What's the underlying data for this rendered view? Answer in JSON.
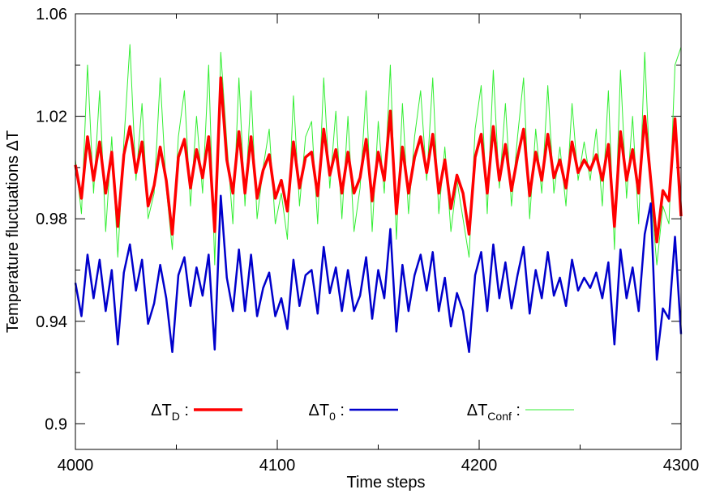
{
  "chart_data": {
    "type": "line",
    "xlabel": "Time steps",
    "ylabel": "Temperature  fluctuations ΔT",
    "legend_separator": " :",
    "xlim": [
      4000,
      4300
    ],
    "xticks": [
      4000,
      4100,
      4200,
      4300
    ],
    "xminorticks": [
      4050,
      4150,
      4250
    ],
    "ylim": [
      0.89,
      1.06
    ],
    "yticks": [
      0.9,
      0.94,
      0.98,
      1.02,
      1.06
    ],
    "yminorticks": [
      0.92,
      0.96,
      1.0,
      1.04
    ],
    "legend_position": "bottom",
    "x": [
      4000,
      4003,
      4006,
      4009,
      4012,
      4015,
      4018,
      4021,
      4024,
      4027,
      4030,
      4033,
      4036,
      4039,
      4042,
      4045,
      4048,
      4051,
      4054,
      4057,
      4060,
      4063,
      4066,
      4069,
      4072,
      4075,
      4078,
      4081,
      4084,
      4087,
      4090,
      4093,
      4096,
      4099,
      4102,
      4105,
      4108,
      4111,
      4114,
      4117,
      4120,
      4123,
      4126,
      4129,
      4132,
      4135,
      4138,
      4141,
      4144,
      4147,
      4150,
      4153,
      4156,
      4159,
      4162,
      4165,
      4168,
      4171,
      4174,
      4177,
      4180,
      4183,
      4186,
      4189,
      4192,
      4195,
      4198,
      4201,
      4204,
      4207,
      4210,
      4213,
      4216,
      4219,
      4222,
      4225,
      4228,
      4231,
      4234,
      4237,
      4240,
      4243,
      4246,
      4249,
      4252,
      4255,
      4258,
      4261,
      4264,
      4267,
      4270,
      4273,
      4276,
      4279,
      4282,
      4285,
      4288,
      4291,
      4294,
      4297,
      4300
    ],
    "series": [
      {
        "name": "ΔT",
        "name_subscript": "Conf",
        "color": "#33ee33",
        "width": 1,
        "values": [
          1.003,
          0.982,
          1.04,
          0.99,
          1.03,
          0.975,
          1.012,
          0.965,
          1.01,
          1.048,
          0.995,
          1.025,
          0.98,
          0.99,
          1.035,
          0.992,
          0.968,
          1.012,
          1.03,
          0.985,
          1.02,
          0.99,
          1.04,
          0.962,
          1.045,
          1.01,
          0.978,
          1.035,
          0.985,
          1.03,
          0.98,
          1.0,
          1.015,
          0.978,
          0.99,
          0.972,
          1.028,
          0.985,
          1.012,
          1.018,
          0.978,
          1.035,
          0.992,
          1.022,
          0.98,
          1.02,
          0.975,
          0.992,
          1.03,
          0.975,
          1.018,
          0.99,
          1.04,
          0.972,
          1.025,
          0.982,
          1.012,
          1.03,
          0.995,
          1.035,
          0.982,
          1.008,
          0.975,
          0.995,
          0.98,
          0.965,
          1.015,
          1.032,
          0.982,
          1.038,
          0.992,
          1.025,
          0.985,
          1.012,
          1.035,
          0.98,
          1.015,
          0.99,
          1.032,
          0.99,
          1.008,
          0.985,
          1.025,
          0.995,
          1.01,
          0.995,
          1.015,
          0.985,
          1.03,
          0.968,
          1.038,
          0.988,
          1.02,
          0.978,
          1.045,
          0.99,
          0.962,
          0.985,
          0.978,
          1.04,
          1.047
        ]
      },
      {
        "name": "ΔT",
        "name_subscript": "D",
        "color": "#ff0000",
        "width": 3.5,
        "values": [
          1.001,
          0.988,
          1.012,
          0.995,
          1.01,
          0.99,
          1.006,
          0.977,
          1.005,
          1.016,
          0.998,
          1.01,
          0.985,
          0.993,
          1.008,
          0.995,
          0.974,
          1.004,
          1.011,
          0.992,
          1.007,
          0.996,
          1.012,
          0.975,
          1.035,
          1.003,
          0.99,
          1.014,
          0.99,
          1.012,
          0.988,
          0.999,
          1.005,
          0.988,
          0.995,
          0.983,
          1.01,
          0.992,
          1.004,
          1.006,
          0.989,
          1.015,
          0.997,
          1.007,
          0.99,
          1.006,
          0.99,
          0.996,
          1.011,
          0.987,
          1.006,
          0.995,
          1.022,
          0.982,
          1.008,
          0.99,
          1.004,
          1.012,
          0.998,
          1.013,
          0.99,
          1.003,
          0.984,
          0.997,
          0.99,
          0.974,
          1.004,
          1.013,
          0.99,
          1.016,
          0.995,
          1.009,
          0.991,
          1.004,
          1.015,
          0.989,
          1.006,
          0.995,
          1.013,
          0.996,
          1.003,
          0.992,
          1.01,
          0.998,
          1.003,
          0.999,
          1.005,
          0.995,
          1.009,
          0.977,
          1.014,
          0.995,
          1.007,
          0.99,
          1.02,
          0.995,
          0.971,
          0.991,
          0.987,
          1.019,
          0.981
        ]
      },
      {
        "name": "ΔT",
        "name_subscript": "0",
        "color": "#0000cc",
        "width": 2.5,
        "values": [
          0.955,
          0.942,
          0.966,
          0.949,
          0.964,
          0.944,
          0.96,
          0.931,
          0.959,
          0.97,
          0.952,
          0.964,
          0.939,
          0.947,
          0.962,
          0.949,
          0.928,
          0.958,
          0.965,
          0.946,
          0.961,
          0.95,
          0.966,
          0.929,
          0.989,
          0.957,
          0.944,
          0.968,
          0.944,
          0.966,
          0.942,
          0.953,
          0.959,
          0.942,
          0.949,
          0.937,
          0.964,
          0.946,
          0.958,
          0.96,
          0.943,
          0.969,
          0.951,
          0.961,
          0.944,
          0.96,
          0.944,
          0.95,
          0.965,
          0.941,
          0.96,
          0.949,
          0.976,
          0.936,
          0.962,
          0.944,
          0.958,
          0.966,
          0.952,
          0.967,
          0.944,
          0.957,
          0.938,
          0.951,
          0.944,
          0.928,
          0.958,
          0.967,
          0.944,
          0.97,
          0.949,
          0.963,
          0.945,
          0.958,
          0.969,
          0.943,
          0.96,
          0.949,
          0.967,
          0.95,
          0.957,
          0.946,
          0.964,
          0.952,
          0.957,
          0.953,
          0.959,
          0.949,
          0.963,
          0.931,
          0.968,
          0.949,
          0.961,
          0.944,
          0.974,
          0.986,
          0.925,
          0.945,
          0.941,
          0.973,
          0.935
        ]
      }
    ]
  }
}
